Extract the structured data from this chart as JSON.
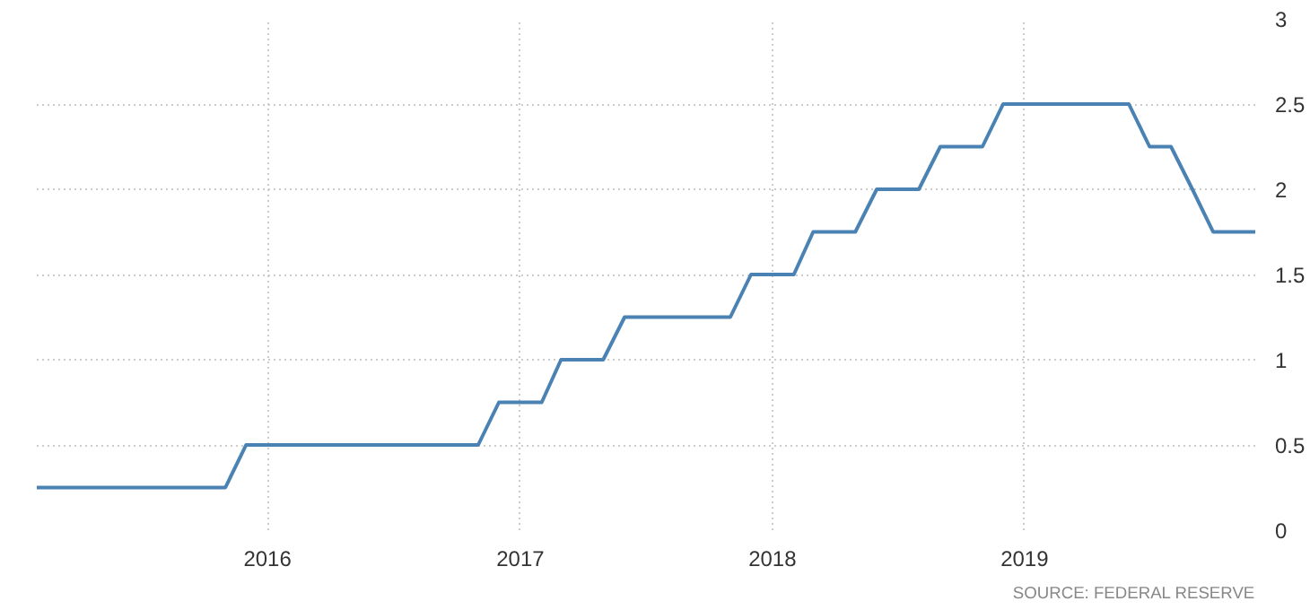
{
  "chart_data": {
    "type": "line",
    "x": [
      "2015-02",
      "2015-11",
      "2015-12",
      "2016-11",
      "2016-12",
      "2017-02",
      "2017-03",
      "2017-05",
      "2017-06",
      "2017-11",
      "2017-12",
      "2018-02",
      "2018-03",
      "2018-05",
      "2018-06",
      "2018-08",
      "2018-09",
      "2018-11",
      "2018-12",
      "2019-06",
      "2019-07",
      "2019-08",
      "2019-09",
      "2019-10",
      "2019-12"
    ],
    "series": [
      {
        "color": "#4a83b3",
        "values": [
          0.25,
          0.25,
          0.5,
          0.5,
          0.75,
          0.75,
          1.0,
          1.0,
          1.25,
          1.25,
          1.5,
          1.5,
          1.75,
          1.75,
          2.0,
          2.0,
          2.25,
          2.25,
          2.5,
          2.5,
          2.25,
          2.25,
          2.0,
          1.75,
          1.75
        ]
      }
    ],
    "xlim": [
      "2015-02",
      "2019-12"
    ],
    "xticks": [
      "2016",
      "2017",
      "2018",
      "2019"
    ],
    "ylim": [
      0,
      3
    ],
    "yticks": [
      0,
      0.5,
      1,
      1.5,
      2,
      2.5,
      3
    ],
    "grid": true,
    "line_style": "solid",
    "annotations": [
      "SOURCE: FEDERAL RESERVE"
    ]
  }
}
